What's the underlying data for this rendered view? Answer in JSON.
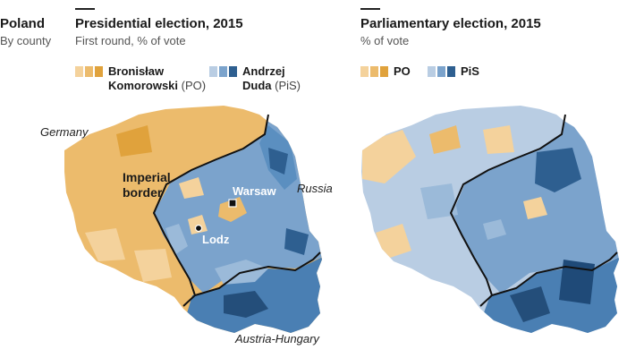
{
  "region": {
    "title": "Poland",
    "subtitle": "By county"
  },
  "panels": [
    {
      "title": "Presidential election, 2015",
      "subtitle": "First round, % of vote",
      "legend": [
        {
          "name_line1": "Bronisław",
          "name_line2": "Komorowski",
          "party": "(PO)",
          "colors": [
            "#f4d29c",
            "#ecbb6c",
            "#e0a23c"
          ]
        },
        {
          "name_line1": "Andrzej",
          "name_line2": "Duda",
          "party": "(PiS)",
          "colors": [
            "#b9cde3",
            "#7ba3cc",
            "#2e5f90"
          ]
        }
      ],
      "labels": {
        "germany": "Germany",
        "russia": "Russia",
        "austria": "Austria-Hungary",
        "warsaw": "Warsaw",
        "lodz": "Lodz",
        "imperial_line1": "Imperial",
        "imperial_line2": "border"
      }
    },
    {
      "title": "Parliamentary election, 2015",
      "subtitle": "% of vote",
      "legend": [
        {
          "name": "PO",
          "colors": [
            "#f4d29c",
            "#ecbb6c",
            "#e0a23c"
          ]
        },
        {
          "name": "PiS",
          "colors": [
            "#b9cde3",
            "#7ba3cc",
            "#2e5f90"
          ]
        }
      ]
    }
  ],
  "colors": {
    "po_light": "#f4d29c",
    "po_mid": "#ecbb6c",
    "po_dark": "#e0a23c",
    "pis_light": "#c3d4e7",
    "pis_mid": "#7ba3cc",
    "pis_dark": "#2e5f90",
    "border": "#111111"
  }
}
